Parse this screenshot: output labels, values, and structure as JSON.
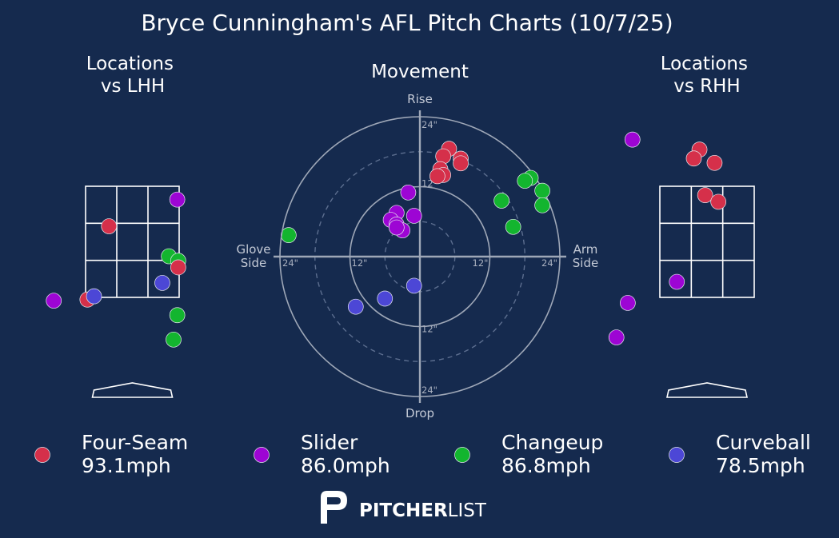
{
  "title": "Bryce Cunningham's AFL Pitch Charts (10/7/25)",
  "colors": {
    "background": "#152a4e",
    "Four-Seam": "#d5304a",
    "Slider": "#9d05d4",
    "Changeup": "#13b52f",
    "Curveball": "#4c47d6"
  },
  "legend": [
    {
      "pitch": "Four-Seam",
      "speed": "93.1mph"
    },
    {
      "pitch": "Slider",
      "speed": "86.0mph"
    },
    {
      "pitch": "Changeup",
      "speed": "86.8mph"
    },
    {
      "pitch": "Curveball",
      "speed": "78.5mph"
    }
  ],
  "brand": {
    "bold": "PITCHER",
    "light": "LIST"
  },
  "chart_data": [
    {
      "type": "scatter",
      "title": "Locations\nvs LHH",
      "x_units": "zone widths from plate center (+ = right)",
      "y_units": "zone heights from zone bottom",
      "points": [
        {
          "pitch": "Slider",
          "x": 0.48,
          "y": 0.88
        },
        {
          "pitch": "Four-Seam",
          "x": -0.25,
          "y": 0.64
        },
        {
          "pitch": "Changeup",
          "x": 1.67,
          "y": 0.56
        },
        {
          "pitch": "Changeup",
          "x": 0.39,
          "y": 0.37
        },
        {
          "pitch": "Changeup",
          "x": 0.49,
          "y": 0.33
        },
        {
          "pitch": "Four-Seam",
          "x": 0.49,
          "y": 0.27
        },
        {
          "pitch": "Curveball",
          "x": 0.32,
          "y": 0.13
        },
        {
          "pitch": "Slider",
          "x": -0.84,
          "y": -0.03
        },
        {
          "pitch": "Four-Seam",
          "x": -0.48,
          "y": -0.02
        },
        {
          "pitch": "Curveball",
          "x": -0.41,
          "y": 0.01
        },
        {
          "pitch": "Changeup",
          "x": 0.48,
          "y": -0.16
        },
        {
          "pitch": "Changeup",
          "x": 0.44,
          "y": -0.38
        }
      ]
    },
    {
      "type": "scatter",
      "title": "Movement",
      "x_label_left": "Glove\nSide",
      "x_label_right": "Arm\nSide",
      "y_label_top": "Rise",
      "y_label_bottom": "Drop",
      "units": "inches",
      "rings": [
        "6\"",
        "12\"",
        "18\"",
        "24\""
      ],
      "tick_labels": [
        "24\"",
        "12\"",
        "12\"",
        "24\"",
        "24\"",
        "12\"",
        "12\"",
        "24\""
      ],
      "limit": 24,
      "points": [
        {
          "pitch": "Four-Seam",
          "x": 5.0,
          "y": 18.5
        },
        {
          "pitch": "Four-Seam",
          "x": 4.0,
          "y": 17.2
        },
        {
          "pitch": "Four-Seam",
          "x": 7.0,
          "y": 16.8
        },
        {
          "pitch": "Four-Seam",
          "x": 7.0,
          "y": 16.0
        },
        {
          "pitch": "Four-Seam",
          "x": 3.5,
          "y": 15.0
        },
        {
          "pitch": "Four-Seam",
          "x": 4.0,
          "y": 14.0
        },
        {
          "pitch": "Four-Seam",
          "x": 3.0,
          "y": 13.8
        },
        {
          "pitch": "Changeup",
          "x": 19.0,
          "y": 13.5
        },
        {
          "pitch": "Changeup",
          "x": 18.0,
          "y": 13.0
        },
        {
          "pitch": "Changeup",
          "x": 21.0,
          "y": 11.3
        },
        {
          "pitch": "Changeup",
          "x": 14.0,
          "y": 9.6
        },
        {
          "pitch": "Changeup",
          "x": 21.0,
          "y": 8.8
        },
        {
          "pitch": "Changeup",
          "x": 16.0,
          "y": 5.1
        },
        {
          "pitch": "Slider",
          "x": -2.0,
          "y": 11.0
        },
        {
          "pitch": "Slider",
          "x": -4.0,
          "y": 7.5
        },
        {
          "pitch": "Slider",
          "x": -1.0,
          "y": 7.0
        },
        {
          "pitch": "Slider",
          "x": -5.0,
          "y": 6.3
        },
        {
          "pitch": "Slider",
          "x": -4.0,
          "y": 5.5
        },
        {
          "pitch": "Slider",
          "x": -3.0,
          "y": 4.5
        },
        {
          "pitch": "Slider",
          "x": -4.0,
          "y": 5.0
        },
        {
          "pitch": "Curveball",
          "x": -1.0,
          "y": -5.0
        },
        {
          "pitch": "Curveball",
          "x": -6.0,
          "y": -7.2
        },
        {
          "pitch": "Curveball",
          "x": -11.0,
          "y": -8.6
        }
      ]
    },
    {
      "type": "scatter",
      "title": "Locations\nvs RHH",
      "x_units": "zone widths from plate center (+ = right)",
      "y_units": "zone heights from zone bottom",
      "points": [
        {
          "pitch": "Slider",
          "x": -0.79,
          "y": 1.42
        },
        {
          "pitch": "Four-Seam",
          "x": -0.08,
          "y": 1.33
        },
        {
          "pitch": "Four-Seam",
          "x": -0.14,
          "y": 1.25
        },
        {
          "pitch": "Four-Seam",
          "x": 0.08,
          "y": 1.21
        },
        {
          "pitch": "Four-Seam",
          "x": -0.02,
          "y": 0.92
        },
        {
          "pitch": "Four-Seam",
          "x": 0.12,
          "y": 0.86
        },
        {
          "pitch": "Slider",
          "x": -0.32,
          "y": 0.14
        },
        {
          "pitch": "Slider",
          "x": -0.84,
          "y": -0.05
        },
        {
          "pitch": "Slider",
          "x": -0.96,
          "y": -0.36
        }
      ]
    }
  ]
}
